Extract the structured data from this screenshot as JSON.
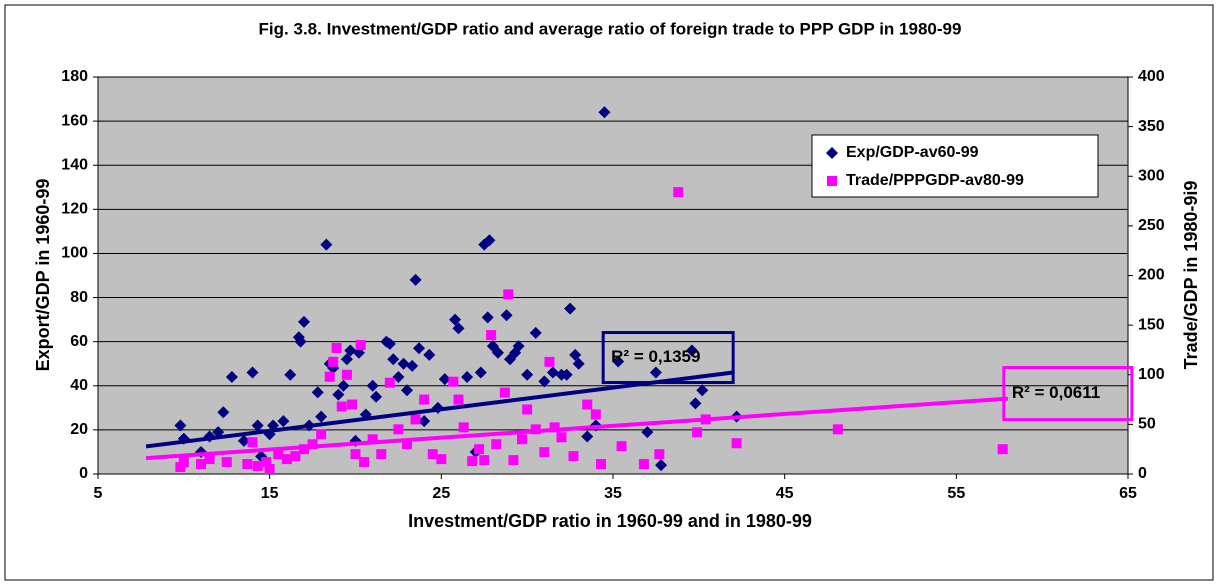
{
  "chart_data": {
    "type": "scatter",
    "title": "Fig. 3.8.  Investment/GDP ratio and average ratio of foreign trade to PPP GDP in 1980-99",
    "xlabel": "Investment/GDP ratio in 1960-99 and in 1980-99",
    "ylabel": "Export/GDP in 1960-99",
    "y2label": "Trade/GDP in 1980-9i9",
    "xlim": [
      5,
      65
    ],
    "xticks": [
      5,
      15,
      25,
      35,
      45,
      55,
      65
    ],
    "ylim": [
      0,
      180
    ],
    "yticks": [
      0,
      20,
      40,
      60,
      80,
      100,
      120,
      140,
      160,
      180
    ],
    "y2lim": [
      0,
      400
    ],
    "y2ticks": [
      0,
      50,
      100,
      150,
      200,
      250,
      300,
      350,
      400
    ],
    "grid": true,
    "legend": "upper right",
    "series": [
      {
        "name": "Exp/GDP-av60-99",
        "color": "#000080",
        "marker": "diamond",
        "x": [
          9.8,
          10,
          11,
          11.5,
          12,
          12.3,
          12.8,
          13.5,
          14,
          14.3,
          14.5,
          15,
          15.2,
          15.8,
          16.2,
          16.7,
          16.8,
          17,
          17.3,
          17.8,
          18,
          18.3,
          18.5,
          18.7,
          19,
          19.3,
          19.5,
          19.7,
          20,
          20.2,
          20.6,
          21,
          21.2,
          21.8,
          22,
          22.2,
          22.5,
          22.8,
          23,
          23.3,
          23.5,
          23.7,
          24,
          24.3,
          24.8,
          25.2,
          25.8,
          26,
          26.5,
          27,
          27.3,
          27.5,
          27.7,
          27.8,
          28,
          28.3,
          28.8,
          29,
          29.3,
          29.5,
          30,
          30.5,
          31,
          31.5,
          32,
          32.3,
          32.5,
          32.8,
          33,
          33.5,
          34,
          34.5,
          35.3,
          37,
          37.5,
          37.8,
          39.6,
          39.8,
          40.2,
          42.2
        ],
        "values": [
          22,
          16,
          10,
          17,
          19,
          28,
          44,
          15,
          46,
          22,
          8,
          18,
          22,
          24,
          45,
          62,
          60,
          69,
          22,
          37,
          26,
          104,
          50,
          48,
          36,
          40,
          52,
          56,
          15,
          55,
          27,
          40,
          35,
          60,
          59,
          52,
          44,
          50,
          38,
          49,
          88,
          57,
          24,
          54,
          30,
          43,
          70,
          66,
          44,
          10,
          46,
          104,
          71,
          106,
          58,
          55,
          72,
          52,
          55,
          58,
          45,
          64,
          42,
          46,
          45,
          45,
          75,
          54,
          50,
          17,
          22,
          164,
          51,
          19,
          46,
          4,
          56,
          32,
          38,
          26
        ],
        "trendline": {
          "x": [
            7.8,
            42
          ],
          "y": [
            12.5,
            46
          ],
          "label": "R² = 0,1359"
        }
      },
      {
        "name": "Trade/PPPGDP-av80-99",
        "color": "#ff00ff",
        "marker": "square",
        "axis": "y2",
        "x": [
          9.8,
          10,
          11,
          11.5,
          12.5,
          13.7,
          14,
          14.3,
          14.8,
          15,
          15.5,
          16,
          16.5,
          17,
          17.5,
          18,
          18.5,
          18.7,
          18.9,
          19.2,
          19.5,
          19.8,
          20,
          20.3,
          20.5,
          21,
          21.5,
          22,
          22.5,
          23,
          23.5,
          24,
          24.5,
          25,
          25.7,
          26,
          26.3,
          26.8,
          27.2,
          27.5,
          27.9,
          28.2,
          28.7,
          28.9,
          29.2,
          29.7,
          30,
          30.5,
          31,
          31.3,
          31.6,
          32,
          32.7,
          33.5,
          34,
          34.3,
          35.5,
          36.8,
          37.7,
          38.8,
          39.9,
          40.4,
          42.2,
          48.1,
          57.7
        ],
        "values": [
          7,
          12,
          10,
          15,
          12,
          10,
          32,
          8,
          12,
          5,
          20,
          15,
          18,
          25,
          30,
          40,
          98,
          113,
          127,
          68,
          100,
          70,
          20,
          130,
          12,
          35,
          20,
          92,
          45,
          30,
          55,
          75,
          20,
          15,
          93,
          75,
          47,
          13,
          25,
          14,
          140,
          30,
          82,
          181,
          14,
          35,
          65,
          45,
          22,
          113,
          47,
          37,
          18,
          70,
          60,
          10,
          28,
          10,
          20,
          284,
          42,
          55,
          31,
          45,
          25
        ],
        "trendline": {
          "x": [
            7.8,
            58
          ],
          "y": [
            16,
            76
          ],
          "label": "R² = 0,0611"
        }
      }
    ]
  }
}
